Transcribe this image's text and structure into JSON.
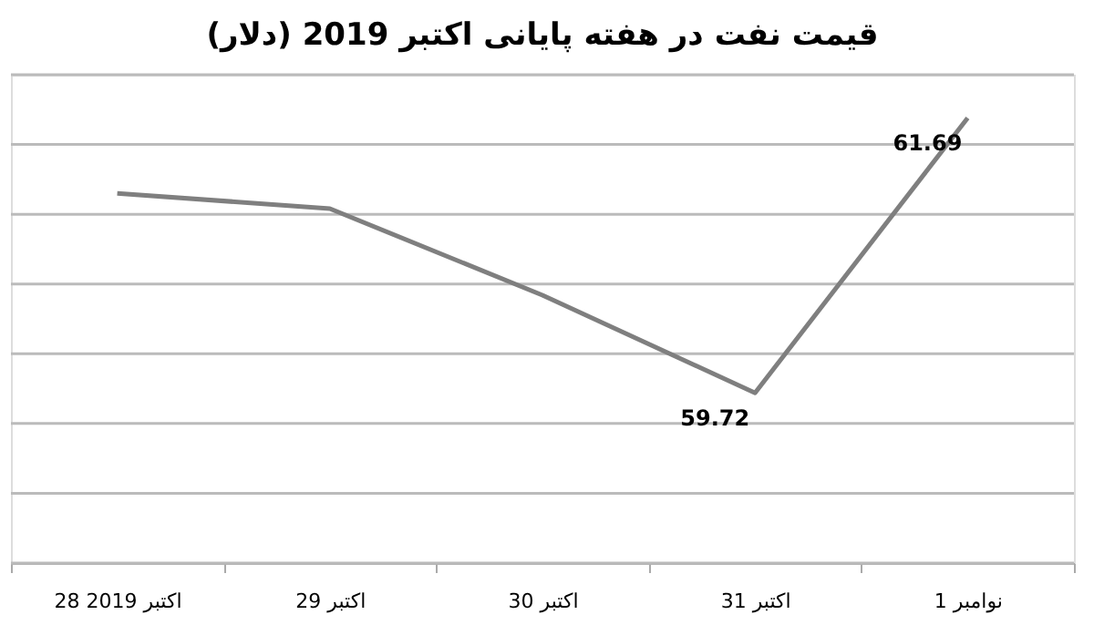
{
  "chart_data": {
    "type": "line",
    "title": "قیمت نفت در هفته پایانی اکتبر 2019 (دلار)",
    "categories": [
      "28 اکتبر 2019",
      "29 اکتبر",
      "30 اکتبر",
      "31 اکتبر",
      "1 نوامبر"
    ],
    "series": [
      {
        "color": "#7f7f7f",
        "values": [
          61.15,
          61.04,
          60.42,
          59.72,
          61.69
        ],
        "value_labels": [
          null,
          null,
          null,
          "59.72",
          "61.69"
        ]
      }
    ],
    "ylim": [
      58.5,
      62
    ],
    "yticks": [
      {
        "value": 58.5,
        "label": null
      },
      {
        "value": 59,
        "label": null
      },
      {
        "value": 59.5,
        "label": null
      },
      {
        "value": 60,
        "label": null
      },
      {
        "value": 60.5,
        "label": null
      },
      {
        "value": 61,
        "label": null
      },
      {
        "value": 61.5,
        "label": null
      },
      {
        "value": 62,
        "label": null
      }
    ],
    "tick_labels": "x",
    "grid": "y",
    "marker": "none",
    "line_style": "solid"
  }
}
